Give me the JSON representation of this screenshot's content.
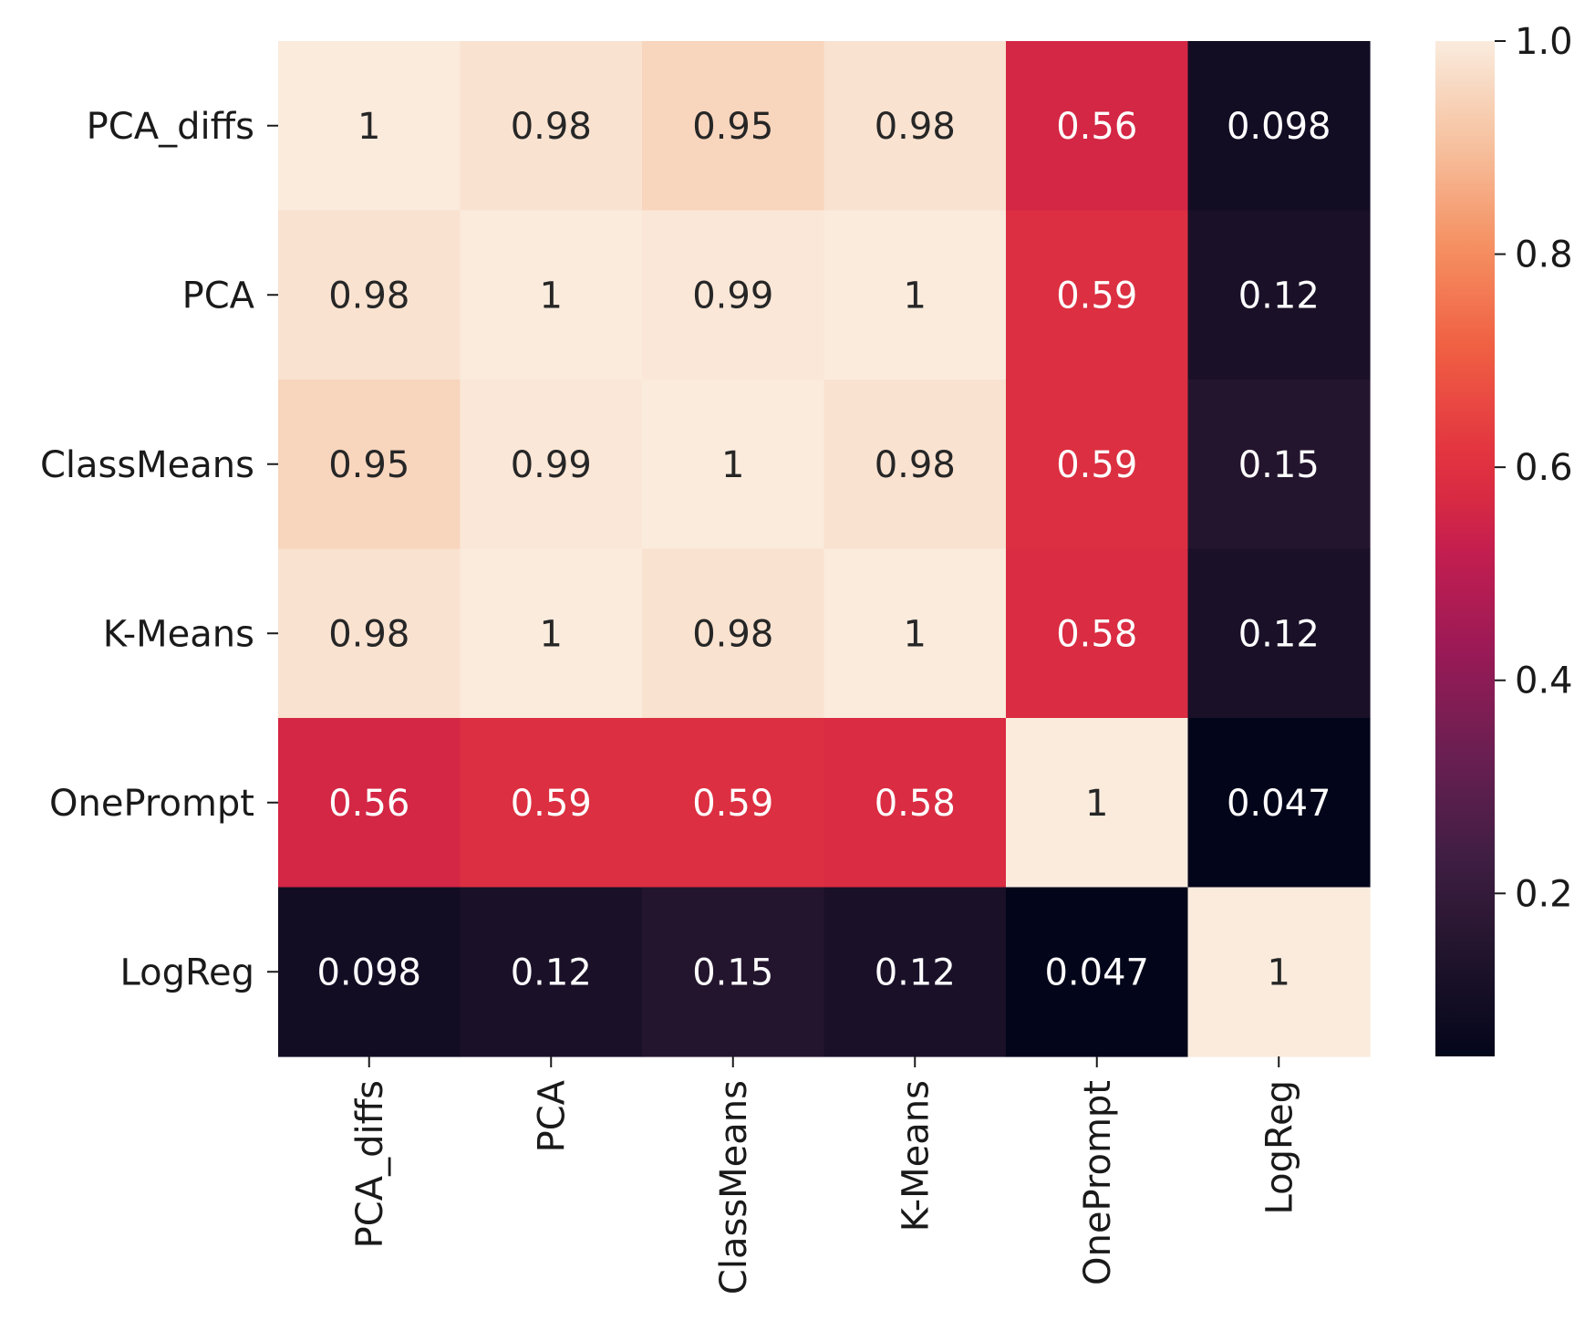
{
  "chart_data": {
    "type": "heatmap",
    "title": "",
    "xlabel": "",
    "ylabel": "",
    "row_labels": [
      "PCA_diffs",
      "PCA",
      "ClassMeans",
      "K-Means",
      "OnePrompt",
      "LogReg"
    ],
    "col_labels": [
      "PCA_diffs",
      "PCA",
      "ClassMeans",
      "K-Means",
      "OnePrompt",
      "LogReg"
    ],
    "values": [
      [
        1,
        0.98,
        0.95,
        0.98,
        0.56,
        0.098
      ],
      [
        0.98,
        1,
        0.99,
        1,
        0.59,
        0.12
      ],
      [
        0.95,
        0.99,
        1,
        0.98,
        0.59,
        0.15
      ],
      [
        0.98,
        1,
        0.98,
        1,
        0.58,
        0.12
      ],
      [
        0.56,
        0.59,
        0.59,
        0.58,
        1,
        0.047
      ],
      [
        0.098,
        0.12,
        0.15,
        0.12,
        0.047,
        1
      ]
    ],
    "annotations": [
      [
        "1",
        "0.98",
        "0.95",
        "0.98",
        "0.56",
        "0.098"
      ],
      [
        "0.98",
        "1",
        "0.99",
        "1",
        "0.59",
        "0.12"
      ],
      [
        "0.95",
        "0.99",
        "1",
        "0.98",
        "0.59",
        "0.15"
      ],
      [
        "0.98",
        "1",
        "0.98",
        "1",
        "0.58",
        "0.12"
      ],
      [
        "0.56",
        "0.59",
        "0.59",
        "0.58",
        "1",
        "0.047"
      ],
      [
        "0.098",
        "0.12",
        "0.15",
        "0.12",
        "0.047",
        "1"
      ]
    ],
    "colormap": "rocket",
    "colorbar": {
      "range": [
        0.047,
        1.0
      ],
      "ticks": [
        0.2,
        0.4,
        0.6,
        0.8,
        1.0
      ],
      "tick_labels": [
        "0.2",
        "0.4",
        "0.6",
        "0.8",
        "1.0"
      ]
    }
  },
  "colors": {
    "text_dark": "#262626",
    "text_light": "#ffffff",
    "axis": "#1a1a1a"
  }
}
